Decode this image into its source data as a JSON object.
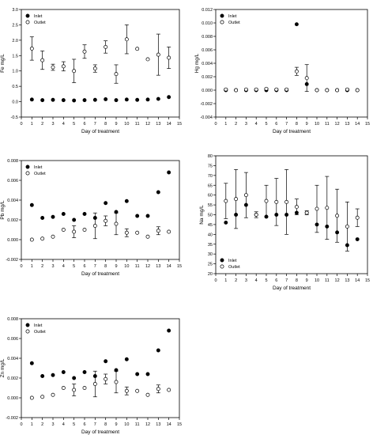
{
  "chart_data": [
    {
      "type": "scatter",
      "xlabel": "Day of treatment",
      "ylabel": "Fe mg/L",
      "xlim": [
        0,
        15
      ],
      "ylim": [
        -0.5,
        3.0
      ],
      "xticks": [
        "0",
        "1",
        "2",
        "3",
        "4",
        "5",
        "6",
        "7",
        "8",
        "9",
        "10",
        "11",
        "12",
        "13",
        "14",
        "15"
      ],
      "yticks": [
        "-0.5",
        "0.0",
        "0.5",
        "1.0",
        "1.5",
        "2.0",
        "2.5",
        "3.0"
      ],
      "legend_position": "top-left",
      "series": [
        {
          "name": "Inlet",
          "marker": "filled-circle",
          "x": [
            1,
            2,
            3,
            4,
            5,
            6,
            7,
            8,
            9,
            10,
            11,
            12,
            13,
            14
          ],
          "y": [
            0.07,
            0.05,
            0.06,
            0.05,
            0.04,
            0.05,
            0.06,
            0.08,
            0.05,
            0.07,
            0.06,
            0.07,
            0.09,
            0.15
          ],
          "err": [
            0,
            0,
            0,
            0,
            0,
            0,
            0,
            0,
            0,
            0,
            0,
            0,
            0,
            0
          ]
        },
        {
          "name": "Outlet",
          "marker": "open-circle",
          "x": [
            1,
            2,
            3,
            4,
            5,
            6,
            7,
            8,
            9,
            10,
            11,
            12,
            13,
            14
          ],
          "y": [
            1.73,
            1.35,
            1.12,
            1.15,
            1.0,
            1.63,
            1.08,
            1.78,
            0.9,
            2.03,
            1.72,
            1.38,
            1.53,
            1.43
          ],
          "err": [
            0.38,
            0.3,
            0.1,
            0.15,
            0.38,
            0.22,
            0.12,
            0.2,
            0.3,
            0.47,
            0.0,
            0.0,
            0.67,
            0.35
          ]
        }
      ]
    },
    {
      "type": "scatter",
      "xlabel": "Day of treatment",
      "ylabel": "Hg mg/L",
      "xlim": [
        0,
        15
      ],
      "ylim": [
        -0.004,
        0.012
      ],
      "xticks": [
        "0",
        "1",
        "2",
        "3",
        "4",
        "5",
        "6",
        "7",
        "8",
        "9",
        "10",
        "11",
        "12",
        "13",
        "14",
        "15"
      ],
      "yticks": [
        "-0.004",
        "-0.002",
        "0.000",
        "0.002",
        "0.004",
        "0.006",
        "0.008",
        "0.010",
        "0.012"
      ],
      "legend_position": "top-left",
      "series": [
        {
          "name": "Inlet",
          "marker": "filled-circle",
          "x": [
            1,
            2,
            3,
            4,
            5,
            6,
            7,
            8,
            9,
            10,
            11,
            12,
            13,
            14
          ],
          "y": [
            0,
            0,
            0,
            0,
            0,
            0,
            0,
            0.0098,
            0.0009,
            0,
            0,
            0,
            0,
            0
          ],
          "err": [
            0,
            0,
            0,
            0,
            0,
            0,
            0,
            0,
            0,
            0,
            0,
            0,
            0,
            0
          ]
        },
        {
          "name": "Outlet",
          "marker": "open-circle",
          "x": [
            1,
            2,
            3,
            4,
            5,
            6,
            7,
            8,
            9,
            10,
            11,
            12,
            13,
            14
          ],
          "y": [
            0.0001,
            0,
            0.0001,
            0.0001,
            0.0002,
            0.0001,
            0.0001,
            0.0028,
            0.0018,
            0,
            0,
            0,
            0.0001,
            0
          ],
          "err": [
            0.0001,
            0,
            0,
            0.0001,
            0.0001,
            0.0001,
            0.0001,
            0.0006,
            0.002,
            0,
            0,
            0,
            0.0001,
            0
          ]
        }
      ]
    },
    {
      "type": "scatter",
      "xlabel": "Day of treatment",
      "ylabel": "Pb mg/L",
      "xlim": [
        0,
        15
      ],
      "ylim": [
        -0.002,
        0.008
      ],
      "xticks": [
        "0",
        "1",
        "2",
        "3",
        "4",
        "5",
        "6",
        "7",
        "8",
        "9",
        "10",
        "11",
        "12",
        "13",
        "14",
        "15"
      ],
      "yticks": [
        "-0.002",
        "0.000",
        "0.002",
        "0.004",
        "0.006",
        "0.008"
      ],
      "legend_position": "top-left",
      "series": [
        {
          "name": "Inlet",
          "marker": "filled-circle",
          "x": [
            1,
            2,
            3,
            4,
            5,
            6,
            7,
            8,
            9,
            10,
            11,
            12,
            13,
            14
          ],
          "y": [
            0.0035,
            0.0022,
            0.0023,
            0.0026,
            0.002,
            0.0026,
            0.0022,
            0.0037,
            0.0028,
            0.0039,
            0.0024,
            0.0024,
            0.0048,
            0.0068
          ],
          "err": [
            0,
            0,
            0,
            0,
            0,
            0,
            0,
            0,
            0,
            0,
            0,
            0,
            0,
            0
          ]
        },
        {
          "name": "Outlet",
          "marker": "open-circle",
          "x": [
            1,
            2,
            3,
            4,
            5,
            6,
            7,
            8,
            9,
            10,
            11,
            12,
            13,
            14
          ],
          "y": [
            0,
            0.0001,
            0.0003,
            0.001,
            0.0008,
            0.001,
            0.0014,
            0.0019,
            0.0016,
            0.0007,
            0.0007,
            0.0003,
            0.0009,
            0.0008
          ],
          "err": [
            0,
            0,
            0,
            0,
            0.0006,
            0,
            0.0013,
            0.0005,
            0.0011,
            0.0004,
            0,
            0,
            0.0004,
            0
          ]
        }
      ]
    },
    {
      "type": "scatter",
      "xlabel": "Day of treatment",
      "ylabel": "Na mg/L",
      "xlim": [
        0,
        15
      ],
      "ylim": [
        20,
        80
      ],
      "xticks": [
        "0",
        "1",
        "2",
        "3",
        "4",
        "5",
        "6",
        "7",
        "8",
        "9",
        "10",
        "11",
        "12",
        "13",
        "14",
        "15"
      ],
      "yticks": [
        "20",
        "25",
        "30",
        "35",
        "40",
        "45",
        "50",
        "55",
        "60",
        "65",
        "70",
        "75",
        "80"
      ],
      "legend_position": "bottom-left",
      "series": [
        {
          "name": "Inlet",
          "marker": "filled-circle",
          "x": [
            1,
            2,
            3,
            4,
            5,
            6,
            7,
            8,
            9,
            10,
            11,
            12,
            13,
            14
          ],
          "y": [
            46,
            50,
            55,
            50,
            49,
            50,
            50,
            51,
            51,
            45,
            44,
            41,
            34.5,
            37.5
          ],
          "err": [
            0,
            0,
            0,
            0,
            0,
            0,
            0,
            0,
            0,
            0,
            0,
            0,
            0,
            0
          ]
        },
        {
          "name": "Outlet",
          "marker": "open-circle",
          "x": [
            1,
            2,
            3,
            4,
            5,
            6,
            7,
            8,
            9,
            10,
            11,
            12,
            13,
            14
          ],
          "y": [
            57,
            58,
            60,
            50,
            57,
            56.5,
            56.5,
            54,
            51,
            53,
            53.5,
            49.5,
            44,
            48.5
          ],
          "err": [
            9,
            15,
            11.5,
            1.5,
            8,
            12,
            16.5,
            4,
            1,
            12,
            16,
            13.5,
            12.5,
            4.5
          ]
        }
      ]
    },
    {
      "type": "scatter",
      "xlabel": "Day of treatment",
      "ylabel": "Zn mg/L",
      "xlim": [
        0,
        15
      ],
      "ylim": [
        -0.002,
        0.008
      ],
      "xticks": [
        "0",
        "1",
        "2",
        "3",
        "4",
        "5",
        "6",
        "7",
        "8",
        "9",
        "10",
        "11",
        "12",
        "13",
        "14",
        "15"
      ],
      "yticks": [
        "-0.002",
        "0.000",
        "0.002",
        "0.004",
        "0.006",
        "0.008"
      ],
      "legend_position": "top-left",
      "series": [
        {
          "name": "Inlet",
          "marker": "filled-circle",
          "x": [
            1,
            2,
            3,
            4,
            5,
            6,
            7,
            8,
            9,
            10,
            11,
            12,
            13,
            14
          ],
          "y": [
            0.0035,
            0.0022,
            0.0023,
            0.0026,
            0.002,
            0.0026,
            0.0022,
            0.0037,
            0.0028,
            0.0039,
            0.0024,
            0.0024,
            0.0048,
            0.0068
          ],
          "err": [
            0,
            0,
            0,
            0,
            0,
            0,
            0,
            0,
            0,
            0,
            0,
            0,
            0,
            0
          ]
        },
        {
          "name": "Outlet",
          "marker": "open-circle",
          "x": [
            1,
            2,
            3,
            4,
            5,
            6,
            7,
            8,
            9,
            10,
            11,
            12,
            13,
            14
          ],
          "y": [
            0,
            0.0001,
            0.0003,
            0.001,
            0.0008,
            0.001,
            0.0014,
            0.0019,
            0.0016,
            0.0007,
            0.0007,
            0.0003,
            0.0009,
            0.0008
          ],
          "err": [
            0,
            0,
            0,
            0,
            0.0006,
            0,
            0.0013,
            0.0005,
            0.0011,
            0.0004,
            0,
            0,
            0.0004,
            0
          ]
        }
      ]
    }
  ]
}
